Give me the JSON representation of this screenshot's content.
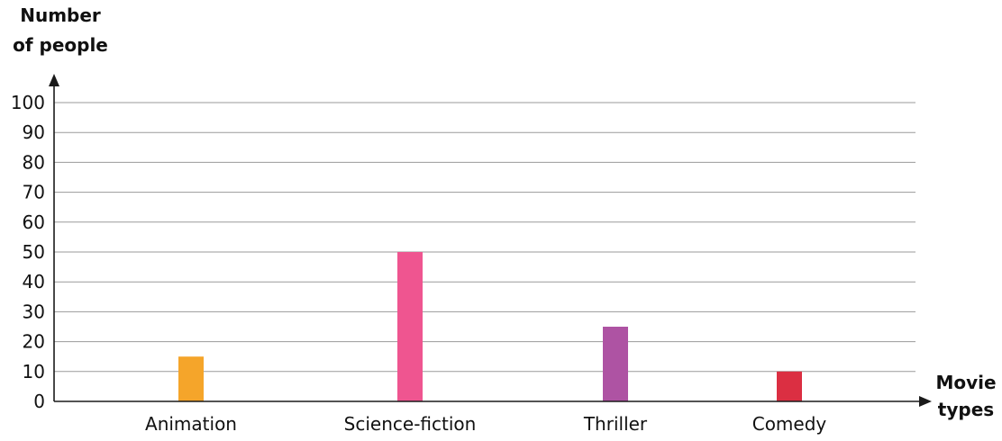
{
  "chart_data": {
    "type": "bar",
    "title": "",
    "ylabel_lines": [
      "Number",
      "of people"
    ],
    "xlabel_lines": [
      "Movie",
      "types"
    ],
    "categories": [
      "Animation",
      "Science-fiction",
      "Thriller",
      "Comedy"
    ],
    "values": [
      15,
      50,
      25,
      10
    ],
    "bar_colors": [
      "#F5A52A",
      "#EF5590",
      "#AE53A3",
      "#DB2F42"
    ],
    "ylim": [
      0,
      100
    ],
    "y_ticks": [
      0,
      10,
      20,
      30,
      40,
      50,
      60,
      70,
      80,
      90,
      100
    ],
    "grid": true,
    "grid_color": "#9a9a9a",
    "axis_color": "#1a1a1a"
  }
}
